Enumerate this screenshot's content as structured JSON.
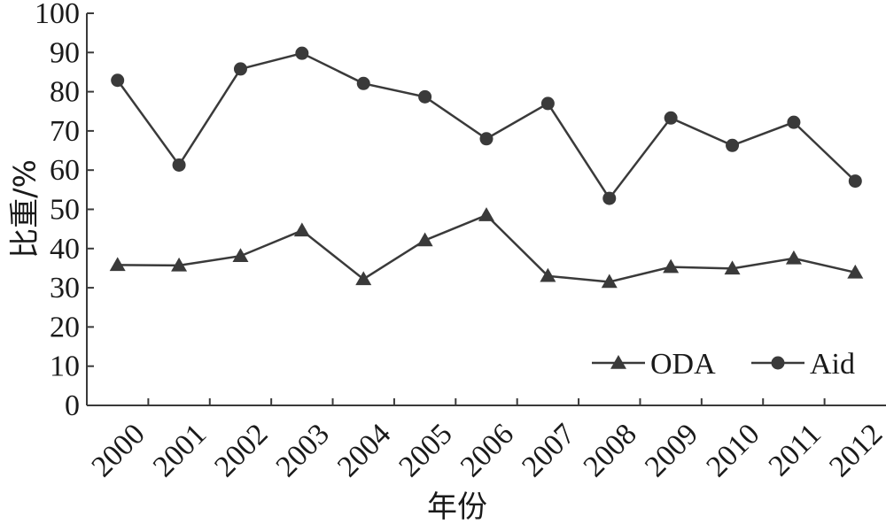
{
  "chart_data": {
    "type": "line",
    "xlabel": "年份",
    "ylabel": "比重/%",
    "ylim": [
      0,
      100
    ],
    "yticks": [
      0,
      10,
      20,
      30,
      40,
      50,
      60,
      70,
      80,
      90,
      100
    ],
    "categories": [
      "2000",
      "2001",
      "2002",
      "2003",
      "2004",
      "2005",
      "2006",
      "2007",
      "2008",
      "2009",
      "2010",
      "2011",
      "2012"
    ],
    "series": [
      {
        "name": "ODA",
        "marker": "triangle",
        "values": [
          35.8,
          35.7,
          38.1,
          44.6,
          32.2,
          42.1,
          48.5,
          33.0,
          31.5,
          35.3,
          34.9,
          37.5,
          33.9
        ]
      },
      {
        "name": "Aid",
        "marker": "circle",
        "values": [
          82.9,
          61.3,
          85.8,
          89.8,
          82.1,
          78.7,
          68.0,
          77.0,
          52.8,
          73.3,
          66.3,
          72.2,
          57.2
        ]
      }
    ],
    "legend_position": "bottom-right",
    "grid": false,
    "line_color": "#3a3a3a"
  }
}
